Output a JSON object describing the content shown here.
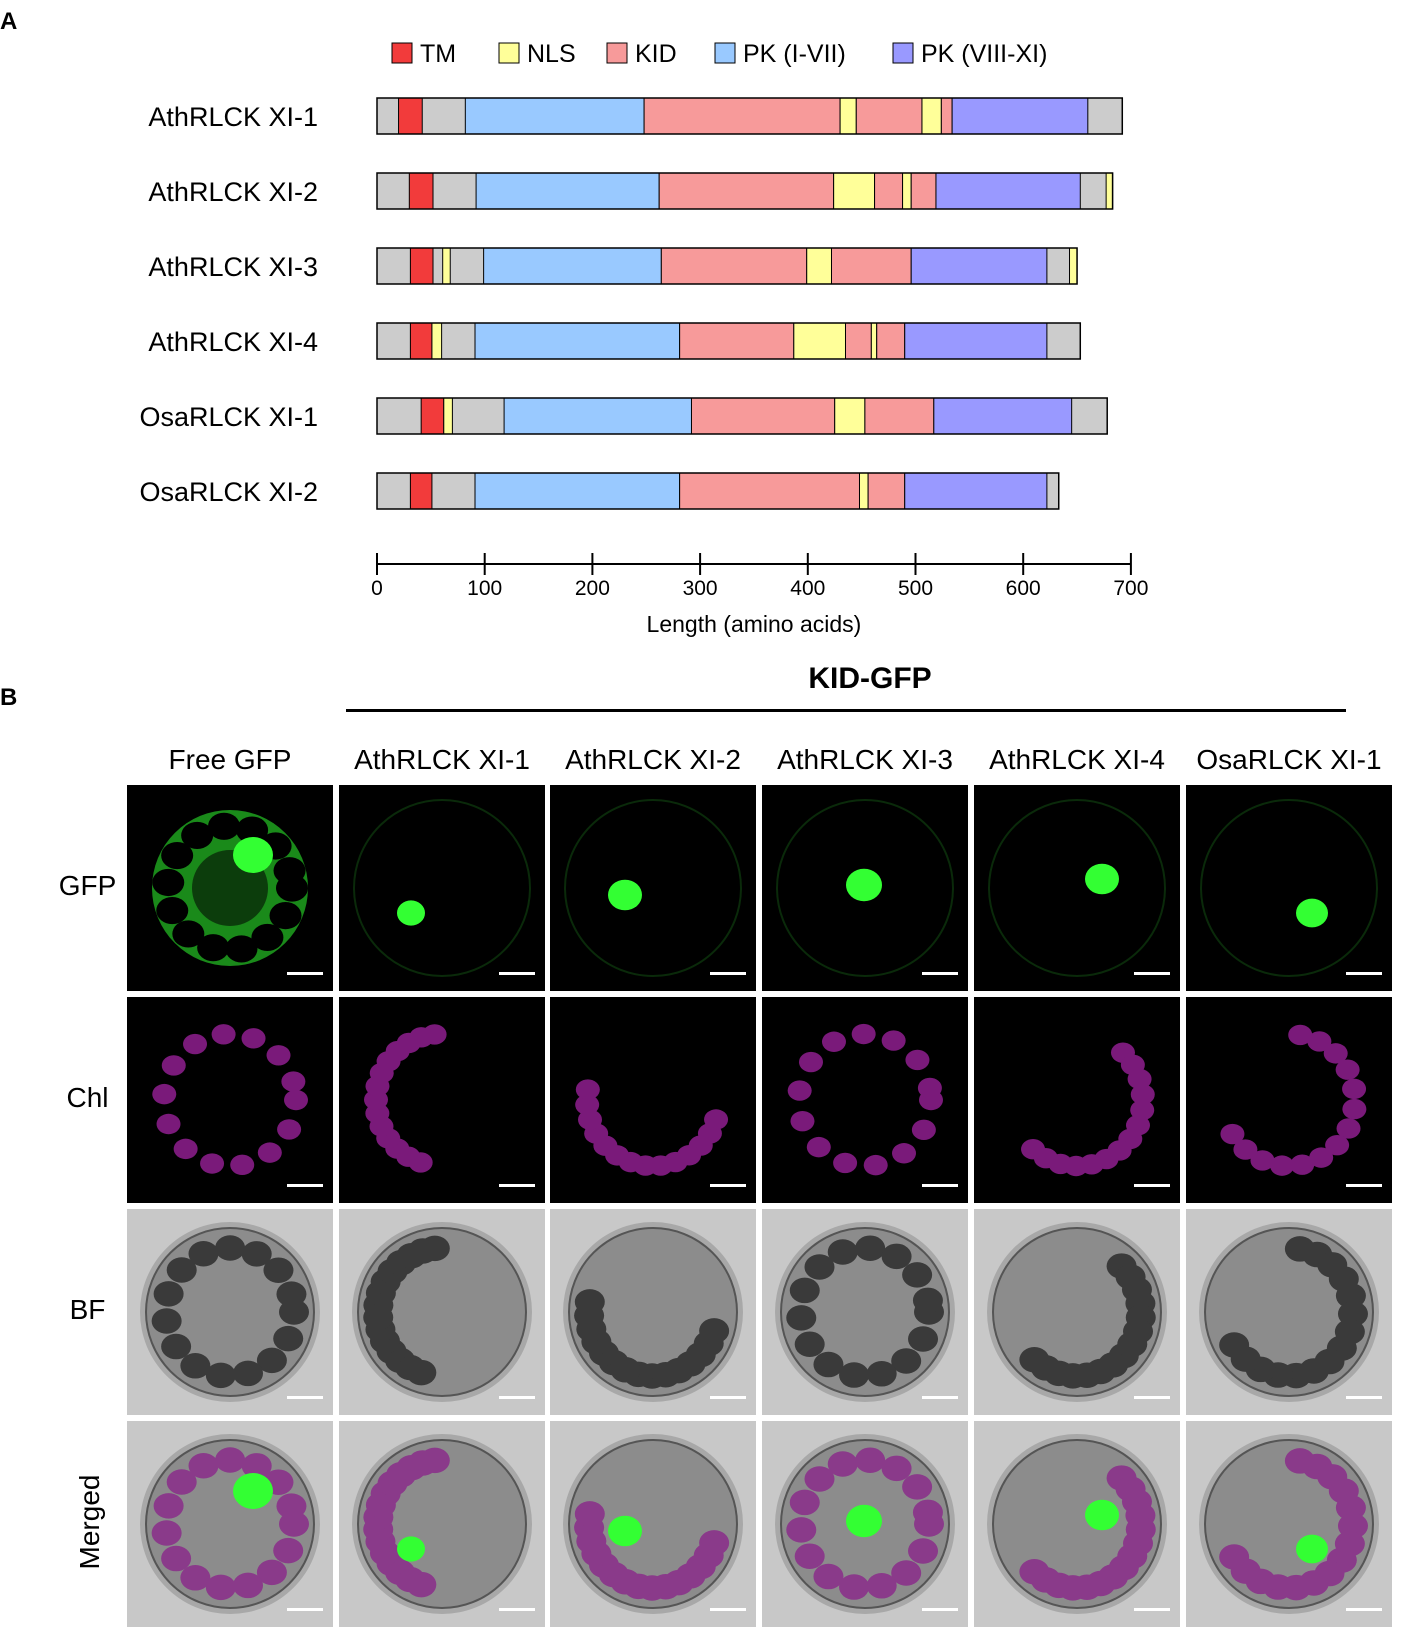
{
  "panel_a": {
    "letter": "A",
    "legend": [
      {
        "label": "TM",
        "color": "#f23b3b"
      },
      {
        "label": "NLS",
        "color": "#ffff99"
      },
      {
        "label": "KID",
        "color": "#f79a9a"
      },
      {
        "label": "PK (I-VII)",
        "color": "#99c9ff"
      },
      {
        "label": "PK (VIII-XI)",
        "color": "#9999ff"
      }
    ],
    "background_color": "#cccccc",
    "axis": {
      "ticks": [
        0,
        100,
        200,
        300,
        400,
        500,
        600,
        700
      ],
      "tick_labels": [
        "0",
        "100",
        "200",
        "300",
        "400",
        "500",
        "600",
        "700"
      ],
      "xlabel": "Length (amino acids)"
    }
  },
  "chart_data": {
    "type": "bar",
    "orientation": "horizontal",
    "xlabel": "Length (amino acids)",
    "xlim": [
      0,
      700
    ],
    "proteins": [
      {
        "name": "AthRLCK XI-1",
        "length": 692,
        "domains": [
          {
            "type": "TM",
            "start": 20,
            "end": 42
          },
          {
            "type": "PK (I-VII)",
            "start": 82,
            "end": 248
          },
          {
            "type": "KID",
            "start": 248,
            "end": 430
          },
          {
            "type": "NLS",
            "start": 430,
            "end": 445
          },
          {
            "type": "KID",
            "start": 445,
            "end": 506
          },
          {
            "type": "NLS",
            "start": 506,
            "end": 524
          },
          {
            "type": "KID",
            "start": 524,
            "end": 534
          },
          {
            "type": "PK (VIII-XI)",
            "start": 534,
            "end": 660
          }
        ]
      },
      {
        "name": "AthRLCK XI-2",
        "length": 683,
        "domains": [
          {
            "type": "TM",
            "start": 30,
            "end": 52
          },
          {
            "type": "PK (I-VII)",
            "start": 92,
            "end": 262
          },
          {
            "type": "KID",
            "start": 262,
            "end": 424
          },
          {
            "type": "NLS",
            "start": 424,
            "end": 462
          },
          {
            "type": "KID",
            "start": 462,
            "end": 488
          },
          {
            "type": "NLS",
            "start": 488,
            "end": 496
          },
          {
            "type": "KID",
            "start": 496,
            "end": 519
          },
          {
            "type": "PK (VIII-XI)",
            "start": 519,
            "end": 653
          },
          {
            "type": "NLS",
            "start": 677,
            "end": 683
          }
        ]
      },
      {
        "name": "AthRLCK XI-3",
        "length": 650,
        "domains": [
          {
            "type": "TM",
            "start": 31,
            "end": 52
          },
          {
            "type": "NLS",
            "start": 61,
            "end": 68
          },
          {
            "type": "PK (I-VII)",
            "start": 99,
            "end": 264
          },
          {
            "type": "KID",
            "start": 264,
            "end": 399
          },
          {
            "type": "NLS",
            "start": 399,
            "end": 422
          },
          {
            "type": "KID",
            "start": 422,
            "end": 496
          },
          {
            "type": "PK (VIII-XI)",
            "start": 496,
            "end": 622
          },
          {
            "type": "NLS",
            "start": 643,
            "end": 650
          }
        ]
      },
      {
        "name": "AthRLCK XI-4",
        "length": 653,
        "domains": [
          {
            "type": "TM",
            "start": 31,
            "end": 51
          },
          {
            "type": "NLS",
            "start": 51,
            "end": 60
          },
          {
            "type": "PK (I-VII)",
            "start": 91,
            "end": 281
          },
          {
            "type": "KID",
            "start": 281,
            "end": 387
          },
          {
            "type": "NLS",
            "start": 387,
            "end": 435
          },
          {
            "type": "KID",
            "start": 435,
            "end": 459
          },
          {
            "type": "NLS",
            "start": 459,
            "end": 464
          },
          {
            "type": "KID",
            "start": 464,
            "end": 490
          },
          {
            "type": "PK (VIII-XI)",
            "start": 490,
            "end": 622
          }
        ]
      },
      {
        "name": "OsaRLCK XI-1",
        "length": 678,
        "domains": [
          {
            "type": "TM",
            "start": 41,
            "end": 62
          },
          {
            "type": "NLS",
            "start": 62,
            "end": 70
          },
          {
            "type": "PK (I-VII)",
            "start": 118,
            "end": 292
          },
          {
            "type": "KID",
            "start": 292,
            "end": 425
          },
          {
            "type": "NLS",
            "start": 425,
            "end": 453
          },
          {
            "type": "KID",
            "start": 453,
            "end": 517
          },
          {
            "type": "PK (VIII-XI)",
            "start": 517,
            "end": 645
          }
        ]
      },
      {
        "name": "OsaRLCK XI-2",
        "length": 633,
        "domains": [
          {
            "type": "TM",
            "start": 31,
            "end": 51
          },
          {
            "type": "PK (I-VII)",
            "start": 91,
            "end": 281
          },
          {
            "type": "KID",
            "start": 281,
            "end": 448
          },
          {
            "type": "NLS",
            "start": 448,
            "end": 456
          },
          {
            "type": "KID",
            "start": 456,
            "end": 490
          },
          {
            "type": "PK (VIII-XI)",
            "start": 490,
            "end": 622
          }
        ]
      }
    ]
  },
  "panel_b": {
    "letter": "B",
    "group_title": "KID-GFP",
    "columns": [
      "Free  GFP",
      "AthRLCK XI-1",
      "AthRLCK XI-2",
      "AthRLCK XI-3",
      "AthRLCK XI-4",
      "OsaRLCK XI-1"
    ],
    "rows": [
      "GFP",
      "Chl",
      "BF",
      "Merged"
    ]
  }
}
